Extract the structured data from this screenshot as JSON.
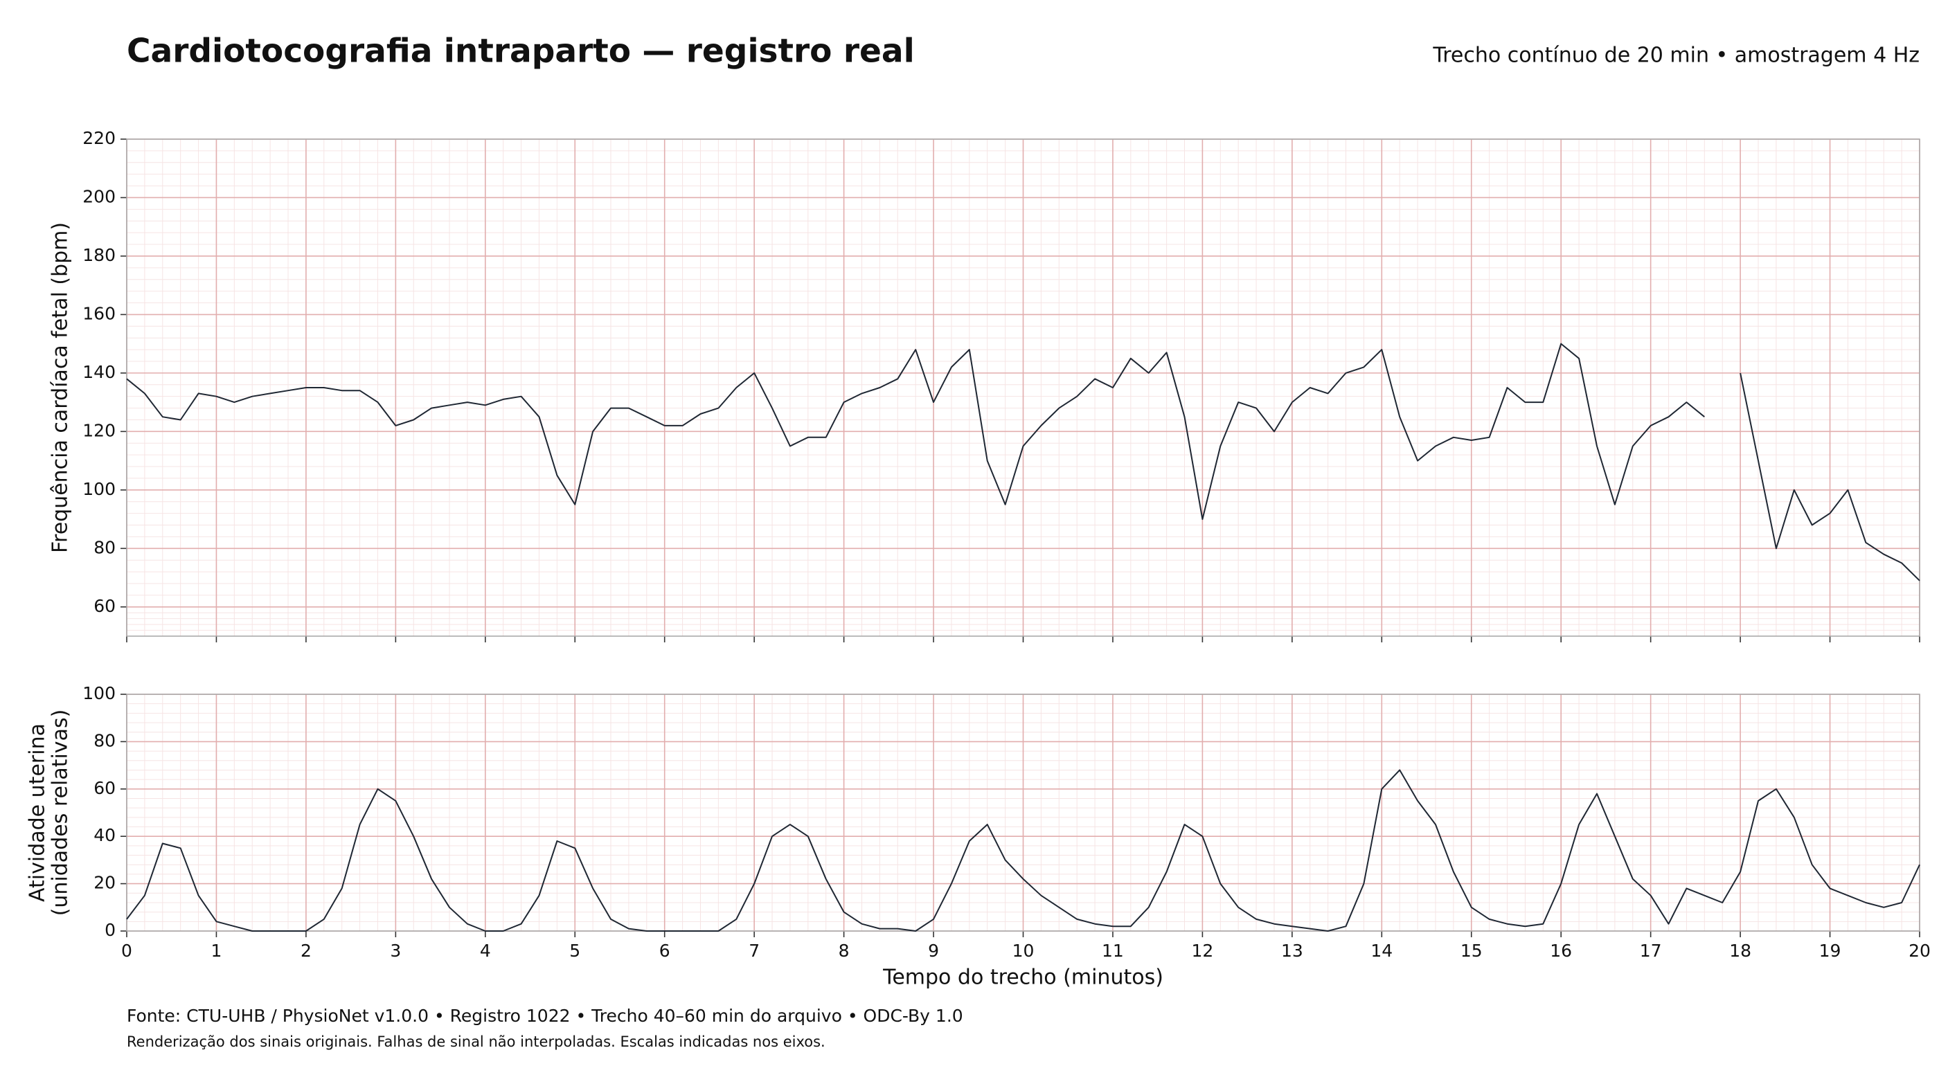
{
  "title": "Cardiotocografia intraparto — registro real",
  "subtitle": "Trecho contínuo de 20 min • amostragem 4 Hz",
  "source": "Fonte: CTU-UHB / PhysioNet v1.0.0 • Registro 1022 • Trecho 40–60 min do arquivo • ODC-By 1.0",
  "note": "Renderização dos sinais originais. Falhas de sinal não interpoladas. Escalas indicadas nos eixos.",
  "chart_data": [
    {
      "type": "line",
      "ylabel": [
        "Frequência cardíaca fetal (bpm)"
      ],
      "color": "#1f2733",
      "grid": true,
      "xlim": [
        0,
        20
      ],
      "xticks": [
        0,
        1,
        2,
        3,
        4,
        5,
        6,
        7,
        8,
        9,
        10,
        11,
        12,
        13,
        14,
        15,
        16,
        17,
        18,
        19,
        20
      ],
      "ylim": [
        50,
        220
      ],
      "yticks": [
        60,
        80,
        100,
        120,
        140,
        160,
        180,
        200,
        220
      ],
      "x": [
        0,
        0.2,
        0.4,
        0.6,
        0.8,
        1,
        1.2,
        1.4,
        1.6,
        1.8,
        2,
        2.2,
        2.4,
        2.6,
        2.8,
        3,
        3.2,
        3.4,
        3.6,
        3.8,
        4,
        4.2,
        4.4,
        4.6,
        4.8,
        5,
        5.2,
        5.4,
        5.6,
        5.8,
        6,
        6.2,
        6.4,
        6.6,
        6.8,
        7,
        7.2,
        7.4,
        7.6,
        7.8,
        8,
        8.2,
        8.4,
        8.6,
        8.8,
        9,
        9.2,
        9.4,
        9.6,
        9.8,
        10,
        10.2,
        10.4,
        10.6,
        10.8,
        11,
        11.2,
        11.4,
        11.6,
        11.8,
        12,
        12.2,
        12.4,
        12.6,
        12.8,
        13,
        13.2,
        13.4,
        13.6,
        13.8,
        14,
        14.2,
        14.4,
        14.6,
        14.8,
        15,
        15.2,
        15.4,
        15.6,
        15.8,
        16,
        16.2,
        16.4,
        16.6,
        16.8,
        17,
        17.2,
        17.4,
        17.6,
        17.8,
        18,
        18.2,
        18.4,
        18.6,
        18.8,
        19,
        19.2,
        19.4,
        19.6,
        19.8,
        20
      ],
      "values": [
        138,
        133,
        125,
        124,
        133,
        132,
        130,
        132,
        133,
        134,
        135,
        135,
        134,
        134,
        130,
        122,
        124,
        128,
        129,
        130,
        129,
        131,
        132,
        125,
        105,
        95,
        120,
        128,
        128,
        125,
        122,
        122,
        126,
        128,
        135,
        140,
        128,
        115,
        118,
        118,
        130,
        133,
        135,
        138,
        148,
        130,
        142,
        148,
        110,
        95,
        115,
        122,
        128,
        132,
        138,
        135,
        145,
        140,
        147,
        125,
        90,
        115,
        130,
        128,
        120,
        130,
        135,
        133,
        140,
        142,
        148,
        125,
        110,
        115,
        118,
        117,
        118,
        135,
        130,
        130,
        150,
        145,
        115,
        95,
        115,
        122,
        125,
        130,
        125,
        null,
        140,
        110,
        80,
        100,
        88,
        92,
        100,
        82,
        78,
        75,
        69
      ]
    },
    {
      "type": "line",
      "ylabel": [
        "Atividade uterina",
        "(unidades relativas)"
      ],
      "xlabel": "Tempo do trecho (minutos)",
      "color": "#1f2733",
      "grid": true,
      "xlim": [
        0,
        20
      ],
      "xticks": [
        0,
        1,
        2,
        3,
        4,
        5,
        6,
        7,
        8,
        9,
        10,
        11,
        12,
        13,
        14,
        15,
        16,
        17,
        18,
        19,
        20
      ],
      "ylim": [
        0,
        100
      ],
      "yticks": [
        0,
        20,
        40,
        60,
        80,
        100
      ],
      "x": [
        0,
        0.2,
        0.4,
        0.6,
        0.8,
        1,
        1.2,
        1.4,
        1.6,
        1.8,
        2,
        2.2,
        2.4,
        2.6,
        2.8,
        3,
        3.2,
        3.4,
        3.6,
        3.8,
        4,
        4.2,
        4.4,
        4.6,
        4.8,
        5,
        5.2,
        5.4,
        5.6,
        5.8,
        6,
        6.2,
        6.4,
        6.6,
        6.8,
        7,
        7.2,
        7.4,
        7.6,
        7.8,
        8,
        8.2,
        8.4,
        8.6,
        8.8,
        9,
        9.2,
        9.4,
        9.6,
        9.8,
        10,
        10.2,
        10.4,
        10.6,
        10.8,
        11,
        11.2,
        11.4,
        11.6,
        11.8,
        12,
        12.2,
        12.4,
        12.6,
        12.8,
        13,
        13.2,
        13.4,
        13.6,
        13.8,
        14,
        14.2,
        14.4,
        14.6,
        14.8,
        15,
        15.2,
        15.4,
        15.6,
        15.8,
        16,
        16.2,
        16.4,
        16.6,
        16.8,
        17,
        17.2,
        17.4,
        17.6,
        17.8,
        18,
        18.2,
        18.4,
        18.6,
        18.8,
        19,
        19.2,
        19.4,
        19.6,
        19.8,
        20
      ],
      "values": [
        5,
        15,
        37,
        35,
        15,
        4,
        2,
        0,
        0,
        0,
        0,
        5,
        18,
        45,
        60,
        55,
        40,
        22,
        10,
        3,
        0,
        0,
        3,
        15,
        38,
        35,
        18,
        5,
        1,
        0,
        0,
        0,
        0,
        0,
        5,
        20,
        40,
        45,
        40,
        22,
        8,
        3,
        1,
        1,
        0,
        5,
        20,
        38,
        45,
        30,
        22,
        15,
        10,
        5,
        3,
        2,
        2,
        10,
        25,
        45,
        40,
        20,
        10,
        5,
        3,
        2,
        1,
        0,
        2,
        20,
        60,
        68,
        55,
        45,
        25,
        10,
        5,
        3,
        2,
        3,
        20,
        45,
        58,
        40,
        22,
        15,
        3,
        18,
        15,
        12,
        25,
        55,
        60,
        48,
        28,
        18,
        15,
        12,
        10,
        12,
        28
      ]
    }
  ]
}
